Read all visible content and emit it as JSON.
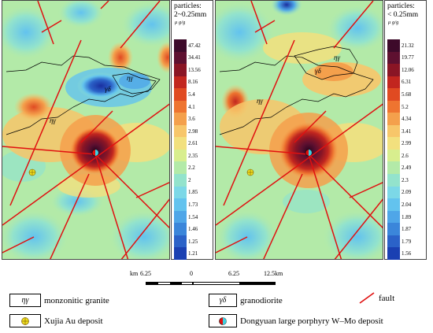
{
  "left_panel": {
    "legend_title": "particles:",
    "legend_title2": "2~0.25mm",
    "unit": "μ g/g",
    "values": [
      "47.42",
      "34.41",
      "13.56",
      "8.16",
      "5.4",
      "4.1",
      "3.6",
      "2.98",
      "2.61",
      "2.35",
      "2.2",
      "2",
      "1.85",
      "1.73",
      "1.54",
      "1.46",
      "1.25",
      "1.21"
    ],
    "label_eta_gamma": "ηγ",
    "label_gamma_delta": "γδ"
  },
  "right_panel": {
    "legend_title": "particles:",
    "legend_title2": "< 0.25mm",
    "unit": "μ g/g",
    "values": [
      "21.32",
      "19.77",
      "12.06",
      "6.31",
      "5.68",
      "5.2",
      "4.34",
      "3.41",
      "2.99",
      "2.6",
      "2.49",
      "2.3",
      "2.09",
      "2.04",
      "1.89",
      "1.87",
      "1.79",
      "1.56"
    ],
    "label_eta_gamma": "ηγ",
    "label_gamma_delta": "γδ",
    "label_eta_gamma_top": "ηγ"
  },
  "color_scale": [
    "#3d0a2a",
    "#5e1030",
    "#8a1525",
    "#c2261f",
    "#e04a22",
    "#ee7430",
    "#f4a04c",
    "#f7c66a",
    "#f2e07e",
    "#d8ee8e",
    "#b3eaa8",
    "#93e3cc",
    "#7cd8e7",
    "#63c3ee",
    "#4fa6e8",
    "#3b86da",
    "#2b62c8",
    "#1a40b2"
  ],
  "scalebar": {
    "unit_left": "km",
    "labels": [
      "6.25",
      "0",
      "6.25",
      "12.5km"
    ]
  },
  "legend": {
    "monzonitic_symbol": "ηγ",
    "monzonitic_label": "monzonitic granite",
    "granodiorite_symbol": "γδ",
    "granodiorite_label": "granodiorite",
    "fault_label": "fault",
    "xujia_label": "Xujia Au deposit",
    "dongyuan_label": "Dongyuan large porphyry W–Mo deposit"
  }
}
